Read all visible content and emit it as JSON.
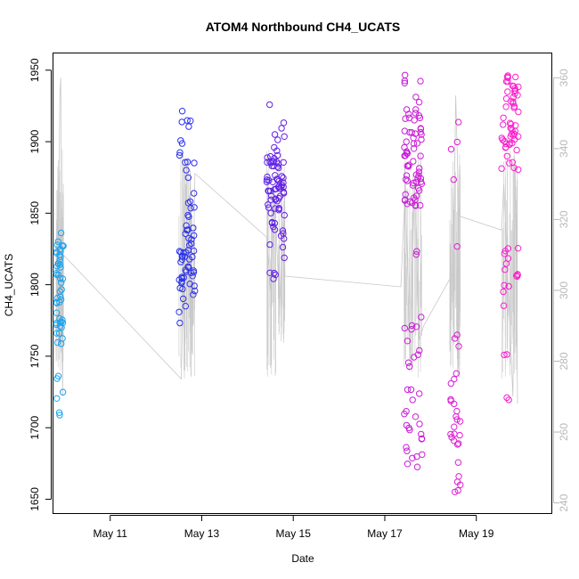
{
  "chart_data": {
    "type": "scatter",
    "title": "ATOM4 Northbound CH4_UCATS",
    "xlabel": "Date",
    "ylabel": "CH4_UCATS",
    "x_unit": "day of May",
    "xlim": [
      9.75,
      20.65
    ],
    "ylim": [
      1640,
      1962
    ],
    "x_ticks": [
      {
        "value": 11,
        "label": "May 11"
      },
      {
        "value": 13,
        "label": "May 13"
      },
      {
        "value": 15,
        "label": "May 15"
      },
      {
        "value": 17,
        "label": "May 17"
      },
      {
        "value": 19,
        "label": "May 19"
      }
    ],
    "y_ticks": [
      1650,
      1700,
      1750,
      1800,
      1850,
      1900,
      1950
    ],
    "y2_ticks": [
      240,
      260,
      280,
      300,
      320,
      340,
      360
    ],
    "y2lim": [
      237,
      367
    ],
    "grid": false,
    "legend": "none",
    "colors": {
      "left_axis": "#000000",
      "right_axis": "#b8b8b8",
      "line": "#c8c8c8",
      "point_gradient": [
        "#1aa7ee",
        "#2233ee",
        "#6a1fe6",
        "#c41dd8",
        "#ff22cc"
      ]
    },
    "point_clusters": [
      {
        "x_range": [
          9.82,
          9.98
        ],
        "y_bands": [
          [
            1800,
            1825,
            16
          ],
          [
            1770,
            1800,
            18
          ],
          [
            1755,
            1770,
            5
          ],
          [
            1720,
            1738,
            4
          ],
          [
            1708,
            1712,
            2
          ],
          [
            1820,
            1838,
            8
          ]
        ]
      },
      {
        "x_range": [
          12.5,
          12.85
        ],
        "y_bands": [
          [
            1800,
            1830,
            30
          ],
          [
            1780,
            1800,
            8
          ],
          [
            1830,
            1860,
            14
          ],
          [
            1860,
            1900,
            9
          ],
          [
            1900,
            1922,
            6
          ],
          [
            1770,
            1775,
            1
          ]
        ]
      },
      {
        "x_range": [
          14.42,
          14.82
        ],
        "y_bands": [
          [
            1850,
            1892,
            55
          ],
          [
            1825,
            1850,
            12
          ],
          [
            1892,
            1912,
            6
          ],
          [
            1795,
            1825,
            5
          ],
          [
            1912,
            1928,
            2
          ]
        ]
      },
      {
        "x_range": [
          17.42,
          17.82
        ],
        "y_bands": [
          [
            1855,
            1922,
            60
          ],
          [
            1922,
            1948,
            8
          ],
          [
            1760,
            1780,
            6
          ],
          [
            1700,
            1755,
            14
          ],
          [
            1670,
            1700,
            12
          ],
          [
            1820,
            1830,
            2
          ]
        ]
      },
      {
        "x_range": [
          18.42,
          18.65
        ],
        "y_bands": [
          [
            1685,
            1740,
            18
          ],
          [
            1655,
            1685,
            6
          ],
          [
            1745,
            1775,
            3
          ],
          [
            1825,
            1925,
            5
          ]
        ]
      },
      {
        "x_range": [
          19.55,
          19.92
        ],
        "y_bands": [
          [
            1880,
            1952,
            55
          ],
          [
            1795,
            1830,
            14
          ],
          [
            1748,
            1752,
            2
          ],
          [
            1718,
            1722,
            2
          ],
          [
            1785,
            1788,
            1
          ]
        ]
      }
    ],
    "line_series": [
      {
        "x": 9.82,
        "y": 280
      },
      {
        "x": 9.84,
        "y": 320
      },
      {
        "x": 9.86,
        "y": 300
      },
      {
        "x": 9.88,
        "y": 330
      },
      {
        "x": 9.9,
        "y": 355
      },
      {
        "x": 9.92,
        "y": 360
      },
      {
        "x": 9.94,
        "y": 300
      },
      {
        "x": 9.96,
        "y": 270
      },
      {
        "x": 9.98,
        "y": 310
      },
      {
        "x": 12.55,
        "y": 275
      },
      {
        "x": 12.6,
        "y": 300
      },
      {
        "x": 12.65,
        "y": 330
      },
      {
        "x": 12.7,
        "y": 300
      },
      {
        "x": 12.75,
        "y": 334
      },
      {
        "x": 12.8,
        "y": 290
      },
      {
        "x": 12.85,
        "y": 333
      },
      {
        "x": 14.42,
        "y": 315
      },
      {
        "x": 14.5,
        "y": 300
      },
      {
        "x": 14.6,
        "y": 325
      },
      {
        "x": 14.7,
        "y": 295
      },
      {
        "x": 14.78,
        "y": 320
      },
      {
        "x": 14.82,
        "y": 304
      },
      {
        "x": 17.35,
        "y": 301
      },
      {
        "x": 17.45,
        "y": 330
      },
      {
        "x": 17.55,
        "y": 280
      },
      {
        "x": 17.65,
        "y": 330
      },
      {
        "x": 17.75,
        "y": 286
      },
      {
        "x": 17.85,
        "y": 290
      },
      {
        "x": 18.5,
        "y": 305
      },
      {
        "x": 18.55,
        "y": 355
      },
      {
        "x": 18.62,
        "y": 321
      },
      {
        "x": 19.55,
        "y": 317
      },
      {
        "x": 19.6,
        "y": 330
      },
      {
        "x": 19.7,
        "y": 300
      },
      {
        "x": 19.8,
        "y": 270
      },
      {
        "x": 19.85,
        "y": 335
      },
      {
        "x": 19.9,
        "y": 268
      }
    ]
  }
}
